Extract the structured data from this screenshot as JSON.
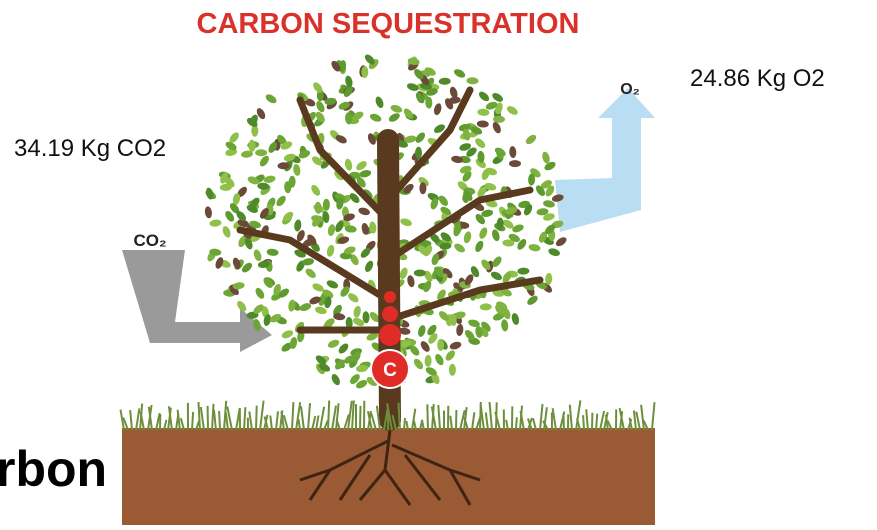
{
  "title": "CARBON SEQUESTRATION",
  "o2_arrow_label": "O₂",
  "o2_amount": "24.86 Kg O2",
  "co2_amount": "34.19 Kg CO2",
  "co2_arrow_label": "CO₂",
  "carbon_symbol": "C",
  "cut_off_word": "rbon"
}
